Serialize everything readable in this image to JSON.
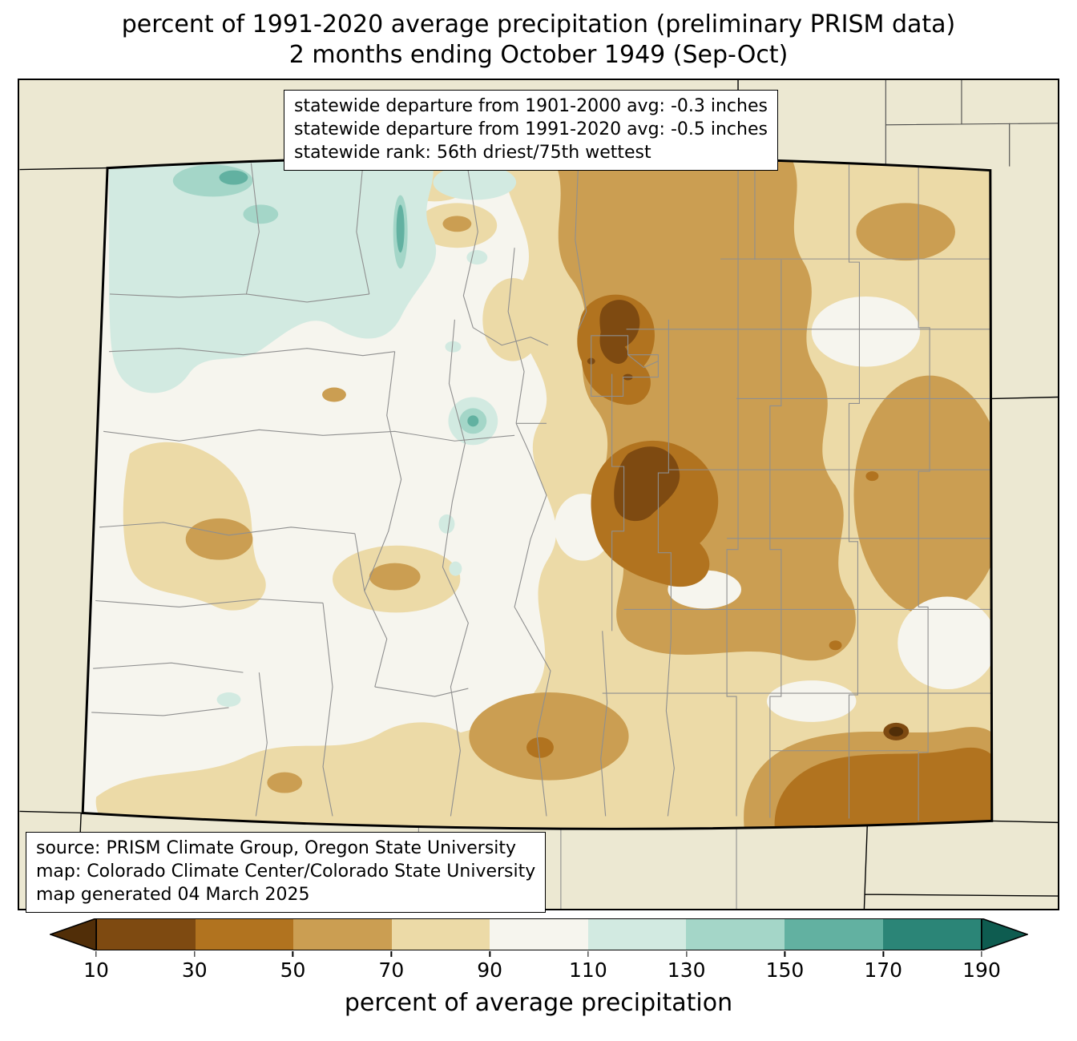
{
  "title": {
    "line1": "percent of 1991-2020 average precipitation (preliminary PRISM data)",
    "line2": "2 months ending October 1949 (Sep-Oct)"
  },
  "stats_box": {
    "lines": [
      "statewide departure from 1901-2000 avg: -0.3 inches",
      "statewide departure from 1991-2020 avg: -0.5 inches",
      "statewide rank: 56th driest/75th wettest"
    ]
  },
  "source_box": {
    "lines": [
      "source: PRISM Climate Group, Oregon State University",
      "map: Colorado Climate Center/Colorado State University",
      "map generated 04 March 2025"
    ]
  },
  "colorbar": {
    "label": "percent of average precipitation",
    "tick_labels": [
      "10",
      "30",
      "50",
      "70",
      "90",
      "110",
      "130",
      "150",
      "170",
      "190"
    ],
    "under_arrow_color": "#512e08",
    "over_arrow_color": "#0e5c50",
    "segment_colors": [
      "#7e4a11",
      "#b1731f",
      "#cb9e52",
      "#ecdaa7",
      "#f6f5ee",
      "#d2eae1",
      "#a4d6c8",
      "#62b1a1",
      "#2b8577"
    ]
  },
  "map": {
    "outside_fill": "#ece8d2",
    "state_base_fill": "#f6f5ee",
    "county_line_color": "#8f8f8f",
    "state_border_color": "#000000"
  }
}
